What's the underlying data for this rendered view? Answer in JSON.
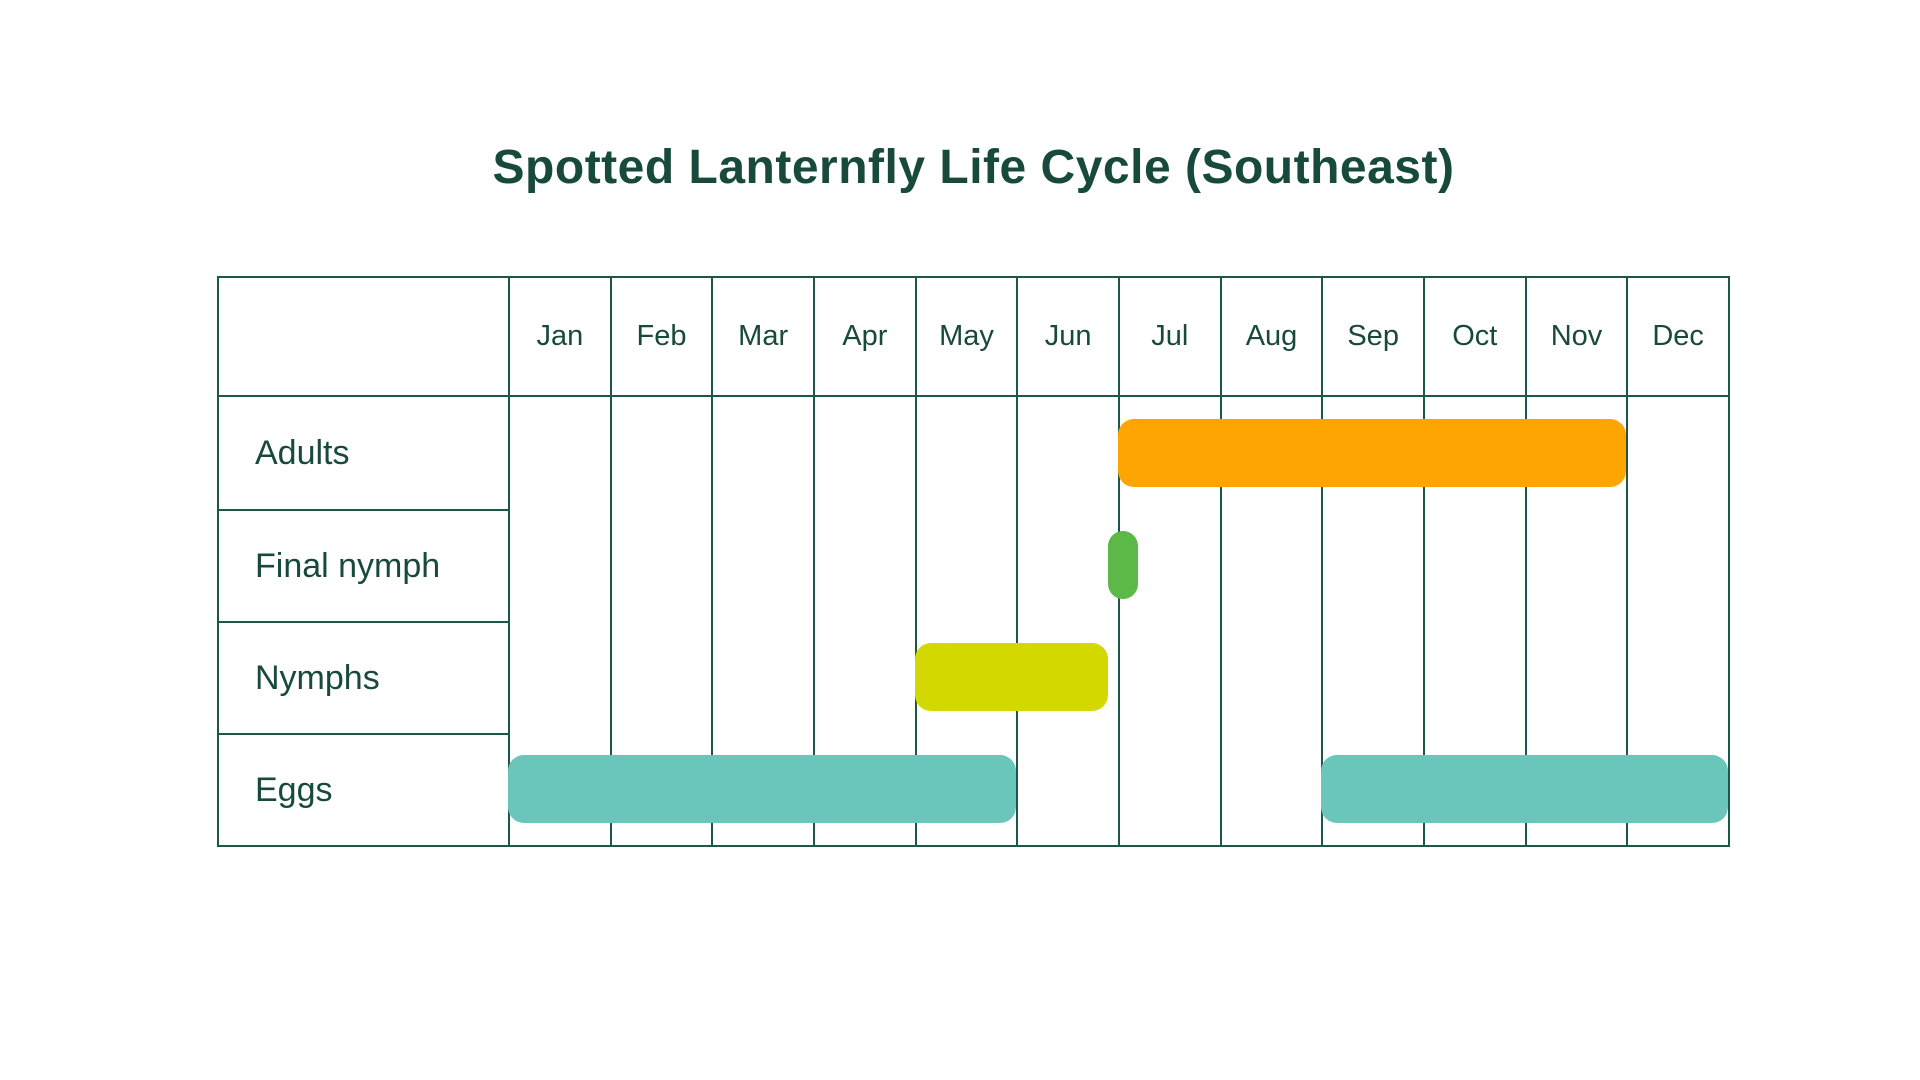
{
  "colors": {
    "border": "#1c584a",
    "text": "#17493c",
    "adults": "#FFA502",
    "final_nymph": "#5CB847",
    "nymphs": "#D3D800",
    "eggs": "#6AC5BB"
  },
  "chart_data": {
    "type": "gantt",
    "title": "Spotted Lanternfly Life Cycle (Southeast)",
    "x_unit": "month index, Jan = 0, end boundary 12 = end of Dec",
    "x_domain": [
      0,
      12
    ],
    "grid": "monthly columns, no horizontal lines in plot area",
    "months": [
      "Jan",
      "Feb",
      "Mar",
      "Apr",
      "May",
      "Jun",
      "Jul",
      "Aug",
      "Sep",
      "Oct",
      "Nov",
      "Dec"
    ],
    "rows": [
      {
        "label": "Adults",
        "color": "#FFA502",
        "bars": [
          {
            "start": 6.0,
            "end": 11.0,
            "desc": "early Jul through end of Nov"
          }
        ]
      },
      {
        "label": "Final nymph",
        "color": "#5CB847",
        "bars": [
          {
            "start": 5.9,
            "end": 6.2,
            "desc": "late Jun to early Jul"
          }
        ]
      },
      {
        "label": "Nymphs",
        "color": "#D3D800",
        "bars": [
          {
            "start": 4.0,
            "end": 5.9,
            "desc": "early May through late Jun"
          }
        ]
      },
      {
        "label": "Eggs",
        "color": "#6AC5BB",
        "bars": [
          {
            "start": 0.0,
            "end": 5.0,
            "desc": "Jan through end of May"
          },
          {
            "start": 8.0,
            "end": 12.0,
            "desc": "Sep through end of Dec"
          }
        ]
      }
    ]
  }
}
